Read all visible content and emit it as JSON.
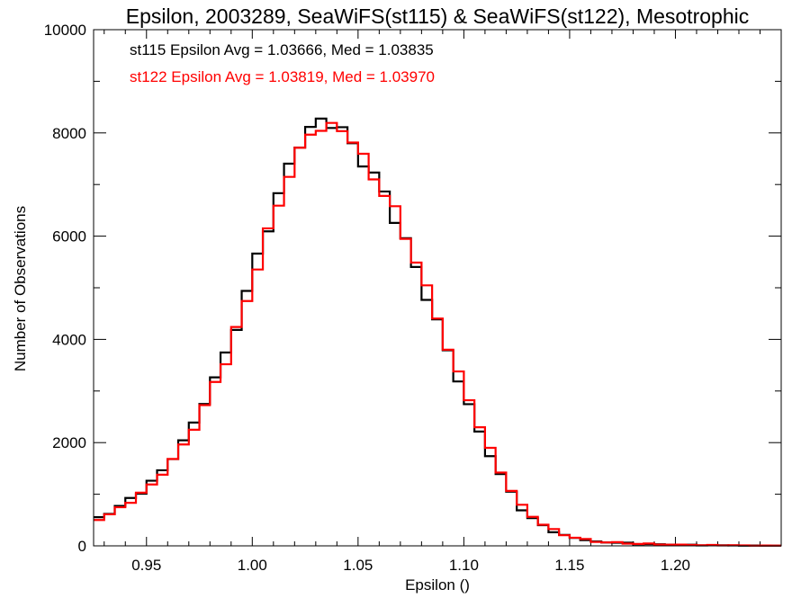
{
  "chart_data": {
    "type": "line",
    "title": "Epsilon, 2003289, SeaWiFS(st115) & SeaWiFS(st122), Mesotrophic",
    "xlabel": "Epsilon ()",
    "ylabel": "Number of Observations",
    "xlim": [
      0.925,
      1.25
    ],
    "ylim": [
      0,
      10000
    ],
    "x_ticks": [
      "0.95",
      "1.00",
      "1.05",
      "1.10",
      "1.15",
      "1.20"
    ],
    "y_ticks": [
      "0",
      "2000",
      "4000",
      "6000",
      "8000",
      "10000"
    ],
    "grid": false,
    "annotations": [
      {
        "text": "st115 Epsilon Avg = 1.03666, Med = 1.03835",
        "color": "#000000"
      },
      {
        "text": "st122 Epsilon Avg = 1.03819, Med = 1.03970",
        "color": "#ff0000"
      }
    ],
    "series": [
      {
        "color": "#000000",
        "x": [
          0.925,
          0.93,
          0.935,
          0.94,
          0.945,
          0.95,
          0.955,
          0.96,
          0.965,
          0.97,
          0.975,
          0.98,
          0.985,
          0.99,
          0.995,
          1.0,
          1.005,
          1.01,
          1.015,
          1.02,
          1.025,
          1.03,
          1.035,
          1.04,
          1.045,
          1.05,
          1.055,
          1.06,
          1.065,
          1.07,
          1.075,
          1.08,
          1.085,
          1.09,
          1.095,
          1.1,
          1.105,
          1.11,
          1.115,
          1.12,
          1.125,
          1.13,
          1.135,
          1.14,
          1.145,
          1.15,
          1.155,
          1.16,
          1.17,
          1.18,
          1.19,
          1.2,
          1.21,
          1.22,
          1.23,
          1.24,
          1.25
        ],
        "values": [
          550,
          640,
          760,
          900,
          1050,
          1230,
          1450,
          1700,
          2000,
          2350,
          2750,
          3200,
          3700,
          4250,
          4900,
          5550,
          6200,
          6800,
          7350,
          7750,
          8050,
          8150,
          8150,
          8050,
          7800,
          7450,
          7100,
          6750,
          6350,
          5900,
          5400,
          4850,
          4300,
          3750,
          3200,
          2700,
          2200,
          1750,
          1350,
          1000,
          730,
          530,
          390,
          280,
          200,
          150,
          110,
          85,
          60,
          40,
          28,
          20,
          14,
          10,
          7,
          5,
          4
        ]
      },
      {
        "color": "#ff0000",
        "x": [
          0.925,
          0.93,
          0.935,
          0.94,
          0.945,
          0.95,
          0.955,
          0.96,
          0.965,
          0.97,
          0.975,
          0.98,
          0.985,
          0.99,
          0.995,
          1.0,
          1.005,
          1.01,
          1.015,
          1.02,
          1.025,
          1.03,
          1.035,
          1.04,
          1.045,
          1.05,
          1.055,
          1.06,
          1.065,
          1.07,
          1.075,
          1.08,
          1.085,
          1.09,
          1.095,
          1.1,
          1.105,
          1.11,
          1.115,
          1.12,
          1.125,
          1.13,
          1.135,
          1.14,
          1.145,
          1.15,
          1.155,
          1.16,
          1.17,
          1.18,
          1.19,
          1.2,
          1.21,
          1.22,
          1.23,
          1.24,
          1.25
        ],
        "values": [
          520,
          610,
          720,
          860,
          1000,
          1180,
          1390,
          1630,
          1920,
          2260,
          2650,
          3100,
          3600,
          4150,
          4780,
          5440,
          6100,
          6720,
          7280,
          7700,
          8000,
          8120,
          8140,
          8080,
          7850,
          7520,
          7180,
          6850,
          6470,
          6030,
          5550,
          5000,
          4450,
          3900,
          3350,
          2830,
          2320,
          1860,
          1440,
          1080,
          790,
          570,
          420,
          300,
          215,
          160,
          118,
          90,
          64,
          43,
          30,
          21,
          15,
          11,
          8,
          6,
          4
        ]
      }
    ]
  }
}
